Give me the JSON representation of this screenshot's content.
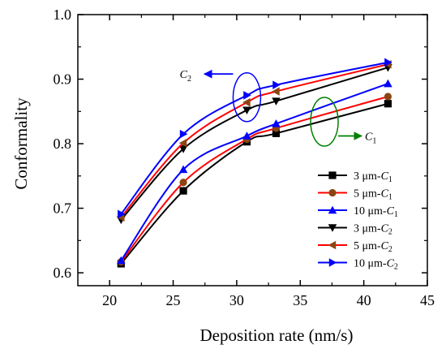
{
  "chart_data": {
    "type": "line",
    "title": "",
    "xlabel": "Deposition rate (nm/s)",
    "ylabel": "Conformality",
    "xlim": [
      17.5,
      45
    ],
    "ylim": [
      0.58,
      1.0
    ],
    "xticks": [
      20,
      25,
      30,
      35,
      40,
      45
    ],
    "xtick_labels": [
      "20",
      "25",
      "30",
      "35",
      "40",
      "45"
    ],
    "yticks": [
      0.6,
      0.7,
      0.8,
      0.9,
      1.0
    ],
    "ytick_labels": [
      "0.6",
      "0.7",
      "0.8",
      "0.9",
      "1.0"
    ],
    "grid": false,
    "legend_position": "lower-right",
    "x": [
      20.9,
      25.8,
      30.8,
      33.1,
      41.9
    ],
    "series": [
      {
        "name": "3 μm-C₁",
        "values": [
          0.614,
          0.727,
          0.803,
          0.816,
          0.862
        ],
        "color": "#000000",
        "marker": "square"
      },
      {
        "name": "5 μm-C₁",
        "values": [
          0.617,
          0.74,
          0.807,
          0.824,
          0.873
        ],
        "color": "#ff0000",
        "marker": "circle"
      },
      {
        "name": "10 μm-C₁",
        "values": [
          0.619,
          0.76,
          0.812,
          0.831,
          0.893
        ],
        "color": "#0000ff",
        "marker": "triangle-up"
      },
      {
        "name": "3 μm-C₂",
        "values": [
          0.682,
          0.792,
          0.852,
          0.866,
          0.918
        ],
        "color": "#000000",
        "marker": "triangle-down"
      },
      {
        "name": "5 μm-C₂",
        "values": [
          0.686,
          0.801,
          0.864,
          0.881,
          0.923
        ],
        "color": "#ff0000",
        "marker": "triangle-left"
      },
      {
        "name": "10 μm-C₂",
        "values": [
          0.691,
          0.815,
          0.875,
          0.891,
          0.926
        ],
        "color": "#0000ff",
        "marker": "triangle-right"
      }
    ],
    "marker_colors": [
      "#000000",
      "#8b4513",
      "#0000ff",
      "#000000",
      "#8b4513",
      "#0000ff"
    ],
    "annotations": [
      {
        "label_main": "C",
        "label_sub": "2",
        "color": "#0000ff",
        "arrow_color": "#0000ff"
      },
      {
        "label_main": "C",
        "label_sub": "1",
        "color": "#008000",
        "arrow_color": "#008000"
      }
    ]
  }
}
